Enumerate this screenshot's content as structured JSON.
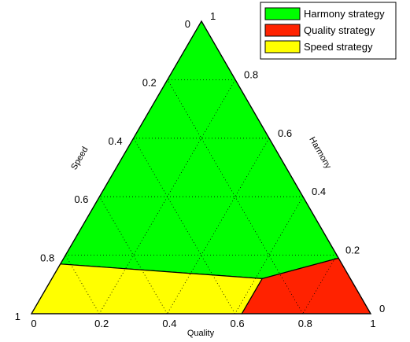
{
  "chart_data": {
    "type": "ternary-region",
    "title": "",
    "axes": {
      "quality": {
        "label": "Quality",
        "ticks": [
          "0",
          "0.2",
          "0.4",
          "0.6",
          "0.8",
          "1"
        ]
      },
      "harmony": {
        "label": "Harmony",
        "ticks": [
          "0",
          "0.2",
          "0.4",
          "0.6",
          "0.8",
          "1"
        ]
      },
      "speed": {
        "label": "Speed",
        "ticks": [
          "0",
          "0.2",
          "0.4",
          "0.6",
          "0.8",
          "1"
        ]
      }
    },
    "grid": true,
    "grid_style": "dotted",
    "legend_position": "top-right",
    "regions": [
      {
        "name": "Harmony strategy",
        "color": "#00ff00",
        "vertices": [
          {
            "quality": 0.0,
            "harmony": 1.0,
            "speed": 0.0
          },
          {
            "quality": 0.0,
            "harmony": 0.17,
            "speed": 0.83
          },
          {
            "quality": 0.62,
            "harmony": 0.12,
            "speed": 0.26
          },
          {
            "quality": 0.81,
            "harmony": 0.19,
            "speed": 0.0
          }
        ]
      },
      {
        "name": "Quality strategy",
        "color": "#ff2200",
        "vertices": [
          {
            "quality": 0.62,
            "harmony": 0.12,
            "speed": 0.26
          },
          {
            "quality": 0.81,
            "harmony": 0.19,
            "speed": 0.0
          },
          {
            "quality": 1.0,
            "harmony": 0.0,
            "speed": 0.0
          },
          {
            "quality": 0.62,
            "harmony": 0.0,
            "speed": 0.38
          }
        ]
      },
      {
        "name": "Speed strategy",
        "color": "#ffff00",
        "vertices": [
          {
            "quality": 0.0,
            "harmony": 0.17,
            "speed": 0.83
          },
          {
            "quality": 0.62,
            "harmony": 0.12,
            "speed": 0.26
          },
          {
            "quality": 0.62,
            "harmony": 0.0,
            "speed": 0.38
          },
          {
            "quality": 0.0,
            "harmony": 0.0,
            "speed": 1.0
          }
        ]
      }
    ]
  }
}
